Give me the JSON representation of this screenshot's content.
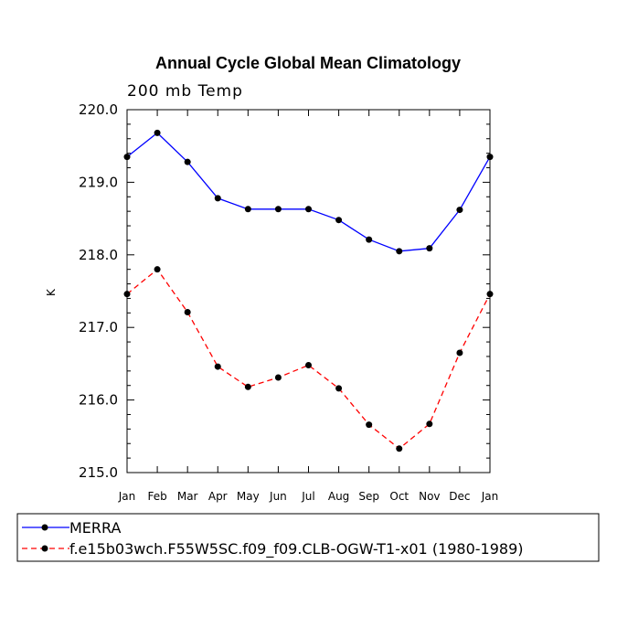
{
  "chart_data": {
    "type": "line",
    "title": "Annual Cycle Global Mean Climatology",
    "subtitle": "200 mb Temp",
    "xlabel": "",
    "ylabel": "K",
    "categories": [
      "Jan",
      "Feb",
      "Mar",
      "Apr",
      "May",
      "Jun",
      "Jul",
      "Aug",
      "Sep",
      "Oct",
      "Nov",
      "Dec",
      "Jan"
    ],
    "ylim": [
      215.0,
      220.0
    ],
    "yticks": [
      215.0,
      216.0,
      217.0,
      218.0,
      219.0,
      220.0
    ],
    "ytick_labels": [
      "215.0",
      "216.0",
      "217.0",
      "218.0",
      "219.0",
      "220.0"
    ],
    "legend_position": "bottom",
    "series": [
      {
        "name": "MERRA",
        "color": "#0000ff",
        "line_style": "solid",
        "marker_color": "#000000",
        "values": [
          219.35,
          219.68,
          219.28,
          218.78,
          218.63,
          218.63,
          218.63,
          218.48,
          218.21,
          218.05,
          218.09,
          218.62,
          219.35
        ]
      },
      {
        "name": "f.e15b03wch.F55W5SC.f09_f09.CLB-OGW-T1-x01 (1980-1989)",
        "color": "#ff0000",
        "line_style": "dashed",
        "marker_color": "#000000",
        "values": [
          217.46,
          217.8,
          217.21,
          216.46,
          216.18,
          216.31,
          216.48,
          216.16,
          215.66,
          215.33,
          215.67,
          216.65,
          217.46
        ]
      }
    ]
  }
}
